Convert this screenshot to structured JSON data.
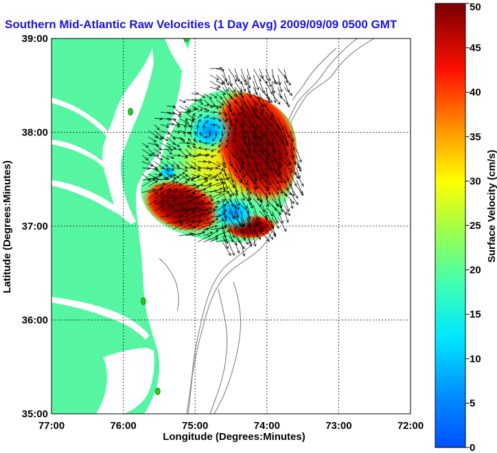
{
  "title": "Southern Mid-Atlantic Raw Velocities (1 Day Avg) 2009/09/09 0500 GMT",
  "map": {
    "xlabel": "Longitude (Degrees:Minutes)",
    "ylabel": "Latitude (Degrees:Minutes)",
    "lon_range": [
      -77,
      -72
    ],
    "lat_range": [
      35,
      39
    ],
    "lon_ticks": [
      {
        "value": -77,
        "label": "77:00"
      },
      {
        "value": -76,
        "label": "76:00"
      },
      {
        "value": -75,
        "label": "75:00"
      },
      {
        "value": -74,
        "label": "74:00"
      },
      {
        "value": -73,
        "label": "73:00"
      },
      {
        "value": -72,
        "label": "72:00"
      }
    ],
    "lat_ticks": [
      {
        "value": 35,
        "label": "35:00"
      },
      {
        "value": 36,
        "label": "36:00"
      },
      {
        "value": 37,
        "label": "37:00"
      },
      {
        "value": 38,
        "label": "38:00"
      },
      {
        "value": 39,
        "label": "39:00"
      }
    ],
    "grid": true,
    "land_color": "#55f5a2",
    "stations": [
      {
        "lon": -75.12,
        "lat": 39.0
      },
      {
        "lon": -75.9,
        "lat": 38.22
      },
      {
        "lon": -75.72,
        "lat": 36.2
      },
      {
        "lon": -75.52,
        "lat": 35.24
      }
    ]
  },
  "colorbar": {
    "label": "Surface Velocity (cm/s)",
    "min": 0,
    "max": 50,
    "ticks": [
      "0",
      "5",
      "10",
      "15",
      "20",
      "25",
      "30",
      "35",
      "40",
      "45",
      "50"
    ],
    "colormap": "jet"
  },
  "chart_data": {
    "type": "heatmap",
    "title": "Southern Mid-Atlantic Raw Velocities (1 Day Avg) 2009/09/09 0500 GMT",
    "xlabel": "Longitude (Degrees:Minutes)",
    "ylabel": "Latitude (Degrees:Minutes)",
    "xlim": [
      -77,
      -72
    ],
    "ylim": [
      35,
      39
    ],
    "value_range": [
      0,
      50
    ],
    "units": "cm/s",
    "speed_regions": [
      {
        "lon": -74.4,
        "lat": 37.9,
        "speed": 50
      },
      {
        "lon": -74.1,
        "lat": 37.6,
        "speed": 50
      },
      {
        "lon": -75.1,
        "lat": 37.15,
        "speed": 50
      },
      {
        "lon": -74.9,
        "lat": 37.98,
        "speed": 12
      },
      {
        "lon": -74.6,
        "lat": 37.1,
        "speed": 10
      },
      {
        "lon": -75.5,
        "lat": 37.55,
        "speed": 10
      },
      {
        "lon": -75.1,
        "lat": 37.55,
        "speed": 28
      },
      {
        "lon": -74.3,
        "lat": 37.2,
        "speed": 30
      },
      {
        "lon": -75.3,
        "lat": 37.85,
        "speed": 25
      }
    ]
  }
}
